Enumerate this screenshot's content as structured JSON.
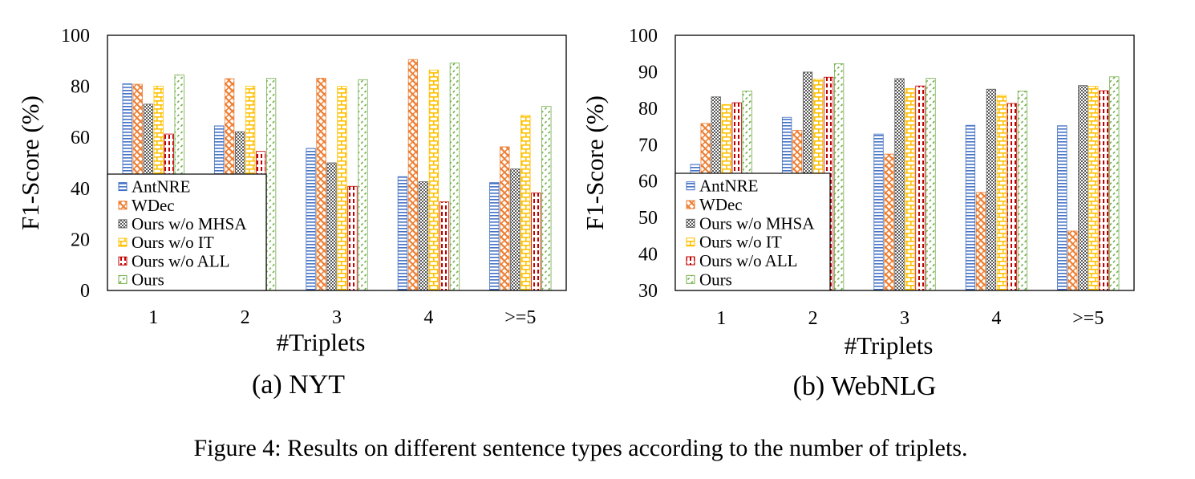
{
  "caption": "Figure 4: Results on different sentence types according to the number of triplets.",
  "styles": {
    "colors": {
      "AntNRE": "#4472c4",
      "WDec": "#ed7d31",
      "Ours w/o MHSA": "#595959",
      "Ours w/o IT": "#ffc000",
      "Ours w/o ALL": "#c00000",
      "Ours": "#70ad47"
    },
    "patterns": {
      "AntNRE": "hlines",
      "WDec": "diag-bricks",
      "Ours w/o MHSA": "checker",
      "Ours w/o IT": "bricks",
      "Ours w/o ALL": "vdash",
      "Ours": "diag-dash"
    }
  },
  "chart_data": [
    {
      "type": "bar",
      "subcaption": "(a) NYT",
      "xlabel": "#Triplets",
      "ylabel": "F1-Score (%)",
      "ylim": [
        0,
        100
      ],
      "yticks": [
        0,
        20,
        40,
        60,
        80,
        100
      ],
      "grid": false,
      "legend_position": "bottom-left",
      "categories": [
        "1",
        "2",
        "3",
        "4",
        ">=5"
      ],
      "series": [
        {
          "name": "AntNRE",
          "values": [
            81.0,
            64.5,
            55.7,
            44.6,
            42.3
          ]
        },
        {
          "name": "WDec",
          "values": [
            80.8,
            83.0,
            83.2,
            90.5,
            56.3
          ]
        },
        {
          "name": "Ours w/o MHSA",
          "values": [
            73.0,
            62.2,
            50.0,
            42.6,
            47.6
          ]
        },
        {
          "name": "Ours w/o IT",
          "values": [
            80.1,
            80.1,
            80.0,
            86.4,
            68.6
          ]
        },
        {
          "name": "Ours w/o ALL",
          "values": [
            61.3,
            54.5,
            40.8,
            34.7,
            38.2
          ]
        },
        {
          "name": "Ours",
          "values": [
            84.5,
            83.1,
            82.6,
            89.1,
            72.1
          ]
        }
      ]
    },
    {
      "type": "bar",
      "subcaption": "(b) WebNLG",
      "xlabel": "#Triplets",
      "ylabel": "F1-Score (%)",
      "ylim": [
        30,
        100
      ],
      "yticks": [
        30,
        40,
        50,
        60,
        70,
        80,
        90,
        100
      ],
      "grid": false,
      "legend_position": "bottom-left",
      "categories": [
        "1",
        "2",
        "3",
        "4",
        ">=5"
      ],
      "series": [
        {
          "name": "AntNRE",
          "values": [
            64.6,
            77.5,
            72.9,
            75.3,
            75.2
          ]
        },
        {
          "name": "WDec",
          "values": [
            75.8,
            73.9,
            67.4,
            56.9,
            46.3
          ]
        },
        {
          "name": "Ours w/o MHSA",
          "values": [
            83.1,
            89.9,
            88.1,
            85.2,
            86.2
          ]
        },
        {
          "name": "Ours w/o IT",
          "values": [
            81.0,
            87.9,
            85.4,
            83.5,
            86.0
          ]
        },
        {
          "name": "Ours w/o ALL",
          "values": [
            81.5,
            88.5,
            86.1,
            81.3,
            84.8
          ]
        },
        {
          "name": "Ours",
          "values": [
            84.7,
            92.2,
            88.2,
            84.7,
            88.6
          ]
        }
      ]
    }
  ]
}
